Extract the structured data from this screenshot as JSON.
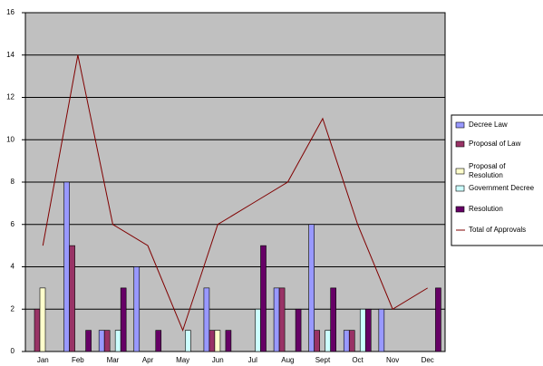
{
  "chart_data": {
    "type": "bar",
    "categories": [
      "Jan",
      "Feb",
      "Mar",
      "Apr",
      "May",
      "Jun",
      "Jul",
      "Aug",
      "Sept",
      "Oct",
      "Nov",
      "Dec"
    ],
    "series": [
      {
        "name": "Decree Law",
        "color": "#9999ff",
        "values": [
          0,
          8,
          1,
          4,
          0,
          3,
          0,
          3,
          6,
          1,
          2,
          0
        ]
      },
      {
        "name": "Proposal of Law",
        "color": "#993366",
        "values": [
          2,
          5,
          1,
          0,
          0,
          1,
          0,
          3,
          1,
          1,
          0,
          0
        ]
      },
      {
        "name": "Proposal of Resolution",
        "color": "#ffffcc",
        "values": [
          3,
          0,
          0,
          0,
          0,
          1,
          0,
          0,
          0,
          0,
          0,
          0
        ]
      },
      {
        "name": "Government Decree",
        "color": "#ccffff",
        "values": [
          0,
          0,
          1,
          0,
          1,
          0,
          2,
          0,
          1,
          2,
          0,
          0
        ]
      },
      {
        "name": "Resolution",
        "color": "#660066",
        "values": [
          0,
          1,
          3,
          1,
          0,
          1,
          5,
          2,
          3,
          2,
          0,
          3
        ]
      },
      {
        "name": "Total of Approvals",
        "color": "#800000",
        "type": "line",
        "values": [
          5,
          14,
          6,
          5,
          1,
          6,
          7,
          8,
          11,
          6,
          2,
          3
        ]
      }
    ],
    "ylim": [
      0,
      16
    ],
    "yticks": [
      0,
      2,
      4,
      6,
      8,
      10,
      12,
      14,
      16
    ],
    "grid": true,
    "legend": "right"
  }
}
